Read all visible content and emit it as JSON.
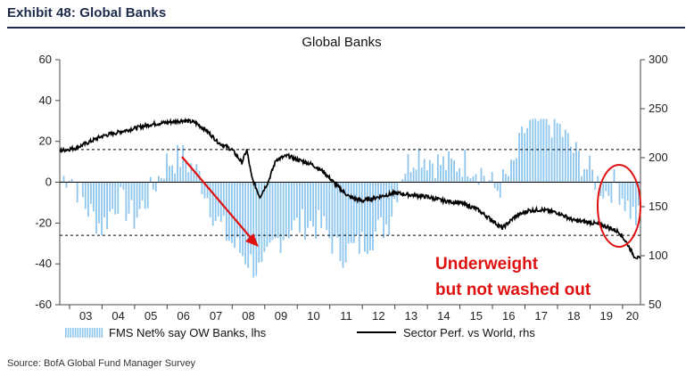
{
  "header": {
    "exhibit_title": "Exhibit 48: Global Banks",
    "source": "Source: BofA Global Fund Manager Survey"
  },
  "chart_data": {
    "type": "bar+line",
    "title": "Global Banks",
    "x_categories": [
      "03",
      "04",
      "05",
      "06",
      "07",
      "08",
      "09",
      "10",
      "11",
      "12",
      "13",
      "14",
      "15",
      "16",
      "17",
      "18",
      "19",
      "20"
    ],
    "x_start_year": 2002.7,
    "x_end_year": 2020.55,
    "left_axis": {
      "label": "FMS Net% say OW Banks, lhs",
      "range": [
        -60,
        60
      ],
      "ticks": [
        -60,
        -40,
        -20,
        0,
        20,
        40,
        60
      ]
    },
    "right_axis": {
      "label": "Sector Perf. vs World, rhs",
      "range": [
        50,
        300
      ],
      "ticks": [
        50,
        100,
        150,
        200,
        250,
        300
      ]
    },
    "reference_lines_lhs": [
      16,
      -26
    ],
    "series": [
      {
        "name": "FMS Net% say OW Banks, lhs",
        "kind": "bar",
        "color": "#8ec6ee",
        "anchors": [
          [
            2002.7,
            0
          ],
          [
            2003.0,
            5
          ],
          [
            2003.5,
            -12
          ],
          [
            2004.0,
            -22
          ],
          [
            2004.5,
            -8
          ],
          [
            2005.0,
            -18
          ],
          [
            2005.5,
            -5
          ],
          [
            2006.0,
            10
          ],
          [
            2006.5,
            12
          ],
          [
            2007.0,
            3
          ],
          [
            2007.5,
            -18
          ],
          [
            2008.0,
            -30
          ],
          [
            2008.5,
            -38
          ],
          [
            2008.9,
            -45
          ],
          [
            2009.3,
            -30
          ],
          [
            2009.8,
            -22
          ],
          [
            2010.3,
            -20
          ],
          [
            2010.8,
            -22
          ],
          [
            2011.3,
            -35
          ],
          [
            2011.8,
            -32
          ],
          [
            2012.3,
            -26
          ],
          [
            2012.8,
            -20
          ],
          [
            2013.2,
            5
          ],
          [
            2013.7,
            15
          ],
          [
            2014.2,
            10
          ],
          [
            2014.7,
            8
          ],
          [
            2015.2,
            10
          ],
          [
            2015.7,
            5
          ],
          [
            2016.1,
            -4
          ],
          [
            2016.6,
            5
          ],
          [
            2017.0,
            26
          ],
          [
            2017.5,
            30
          ],
          [
            2018.0,
            28
          ],
          [
            2018.5,
            15
          ],
          [
            2019.0,
            5
          ],
          [
            2019.5,
            -5
          ],
          [
            2019.8,
            0
          ],
          [
            2020.1,
            -10
          ],
          [
            2020.4,
            -18
          ]
        ]
      },
      {
        "name": "Sector Perf. vs World, rhs",
        "kind": "line",
        "color": "#000000",
        "anchors": [
          [
            2002.7,
            207
          ],
          [
            2003.2,
            210
          ],
          [
            2003.6,
            216
          ],
          [
            2004.0,
            222
          ],
          [
            2004.5,
            226
          ],
          [
            2005.0,
            230
          ],
          [
            2005.5,
            234
          ],
          [
            2006.0,
            236
          ],
          [
            2006.5,
            238
          ],
          [
            2006.85,
            236
          ],
          [
            2007.2,
            228
          ],
          [
            2007.6,
            215
          ],
          [
            2008.0,
            208
          ],
          [
            2008.3,
            195
          ],
          [
            2008.45,
            208
          ],
          [
            2008.6,
            180
          ],
          [
            2008.85,
            160
          ],
          [
            2009.1,
            175
          ],
          [
            2009.35,
            198
          ],
          [
            2009.7,
            202
          ],
          [
            2010.0,
            198
          ],
          [
            2010.4,
            194
          ],
          [
            2010.8,
            186
          ],
          [
            2011.2,
            172
          ],
          [
            2011.6,
            160
          ],
          [
            2012.0,
            156
          ],
          [
            2012.5,
            160
          ],
          [
            2013.0,
            164
          ],
          [
            2013.5,
            162
          ],
          [
            2014.0,
            160
          ],
          [
            2014.5,
            156
          ],
          [
            2015.0,
            154
          ],
          [
            2015.5,
            148
          ],
          [
            2016.0,
            136
          ],
          [
            2016.3,
            128
          ],
          [
            2016.7,
            140
          ],
          [
            2017.1,
            146
          ],
          [
            2017.5,
            147
          ],
          [
            2018.0,
            144
          ],
          [
            2018.5,
            136
          ],
          [
            2019.0,
            134
          ],
          [
            2019.5,
            130
          ],
          [
            2019.9,
            124
          ],
          [
            2020.15,
            112
          ],
          [
            2020.35,
            100
          ],
          [
            2020.5,
            97
          ]
        ]
      }
    ],
    "annotations": [
      {
        "text": "Underweight",
        "kind": "label"
      },
      {
        "text": "but not washed out",
        "kind": "label"
      }
    ]
  }
}
